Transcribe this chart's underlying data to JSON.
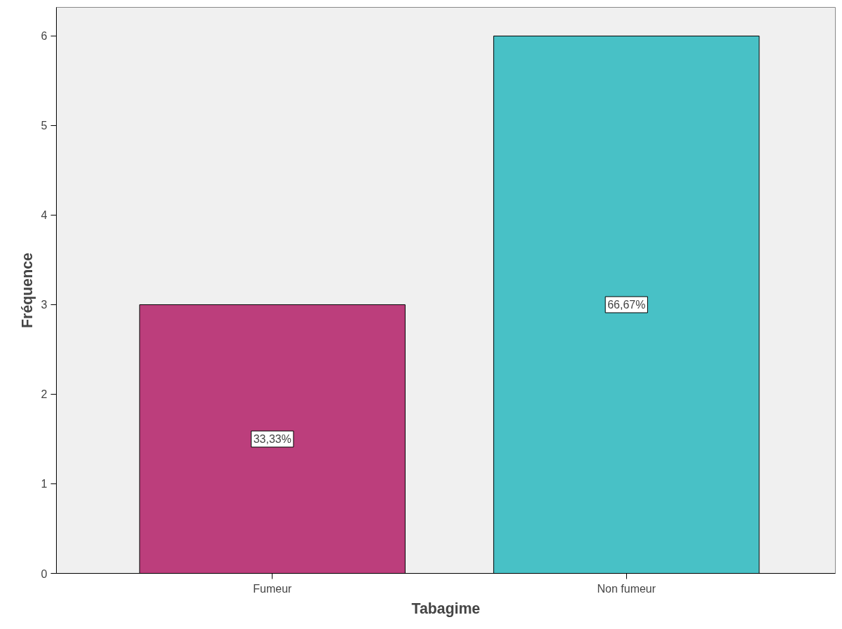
{
  "chart_data": {
    "type": "bar",
    "xlabel": "Tabagime",
    "ylabel": "Fréquence",
    "categories": [
      "Fumeur",
      "Non fumeur"
    ],
    "values": [
      3,
      6
    ],
    "colors": [
      "#bc3e7c",
      "#48c1c6"
    ],
    "annotations": [
      "33,33%",
      "66,67%"
    ],
    "ylim": [
      0,
      6.32
    ],
    "yticks": [
      0,
      1,
      2,
      3,
      4,
      5,
      6
    ],
    "grid": false
  }
}
